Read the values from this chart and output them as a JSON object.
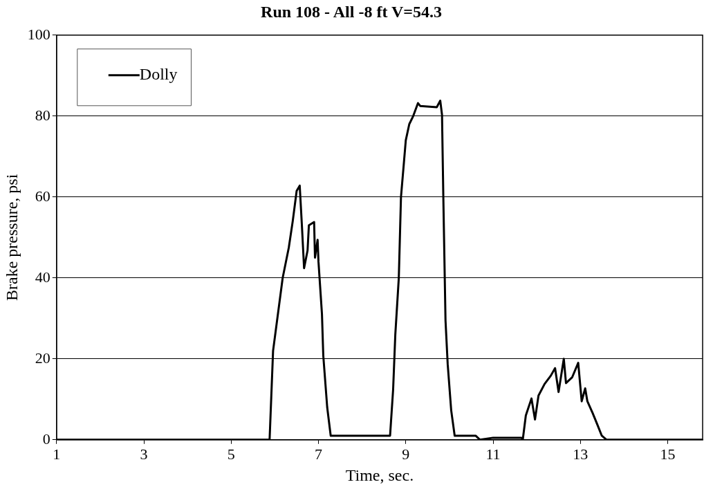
{
  "chart_data": {
    "type": "line",
    "title": "Run 108 - All -8 ft V=54.3",
    "xlabel": "Time, sec.",
    "ylabel": "Brake pressure, psi",
    "xlim": [
      1,
      15.8
    ],
    "xticks": [
      1,
      3,
      5,
      7,
      9,
      11,
      13,
      15
    ],
    "ylim": [
      0,
      100
    ],
    "yticks": [
      0,
      20,
      40,
      60,
      80,
      100
    ],
    "grid": "y",
    "legend": "top left",
    "marker": "none",
    "line_style": "solid",
    "series": [
      {
        "name": "Dolly",
        "color": "#000000",
        "x": [
          1,
          5.88,
          5.96,
          6.18,
          6.32,
          6.41,
          6.5,
          6.57,
          6.62,
          6.67,
          6.75,
          6.78,
          6.9,
          6.92,
          6.98,
          7.0,
          7.08,
          7.11,
          7.2,
          7.28,
          7.5,
          8.0,
          8.6,
          8.64,
          8.71,
          8.76,
          8.84,
          8.89,
          8.95,
          9.0,
          9.08,
          9.17,
          9.28,
          9.33,
          9.71,
          9.79,
          9.83,
          9.86,
          9.91,
          9.96,
          10.04,
          10.12,
          10.6,
          10.7,
          11.0,
          11.65,
          11.68,
          11.75,
          11.88,
          11.96,
          12.04,
          12.18,
          12.32,
          12.42,
          12.5,
          12.62,
          12.67,
          12.81,
          12.95,
          13.03,
          13.11,
          13.16,
          13.28,
          13.39,
          13.49,
          13.6,
          15.8
        ],
        "values": [
          0,
          0,
          22,
          40,
          47.5,
          54,
          61.5,
          62.8,
          53,
          42.4,
          46.8,
          53,
          53.8,
          45,
          49.4,
          44,
          31,
          20.8,
          8,
          1,
          1,
          1,
          1,
          1,
          12.4,
          26,
          40,
          60,
          67.6,
          74,
          78,
          80,
          83.2,
          82.5,
          82.2,
          83.8,
          80.3,
          60,
          29.5,
          18.7,
          7.3,
          1,
          1,
          0,
          0.5,
          0.5,
          0,
          6,
          10.2,
          5,
          10.9,
          13.8,
          15.8,
          17.7,
          11.8,
          20,
          14,
          15.4,
          19,
          9.5,
          12.7,
          9.5,
          6.6,
          3.7,
          1,
          0,
          0
        ]
      }
    ]
  }
}
